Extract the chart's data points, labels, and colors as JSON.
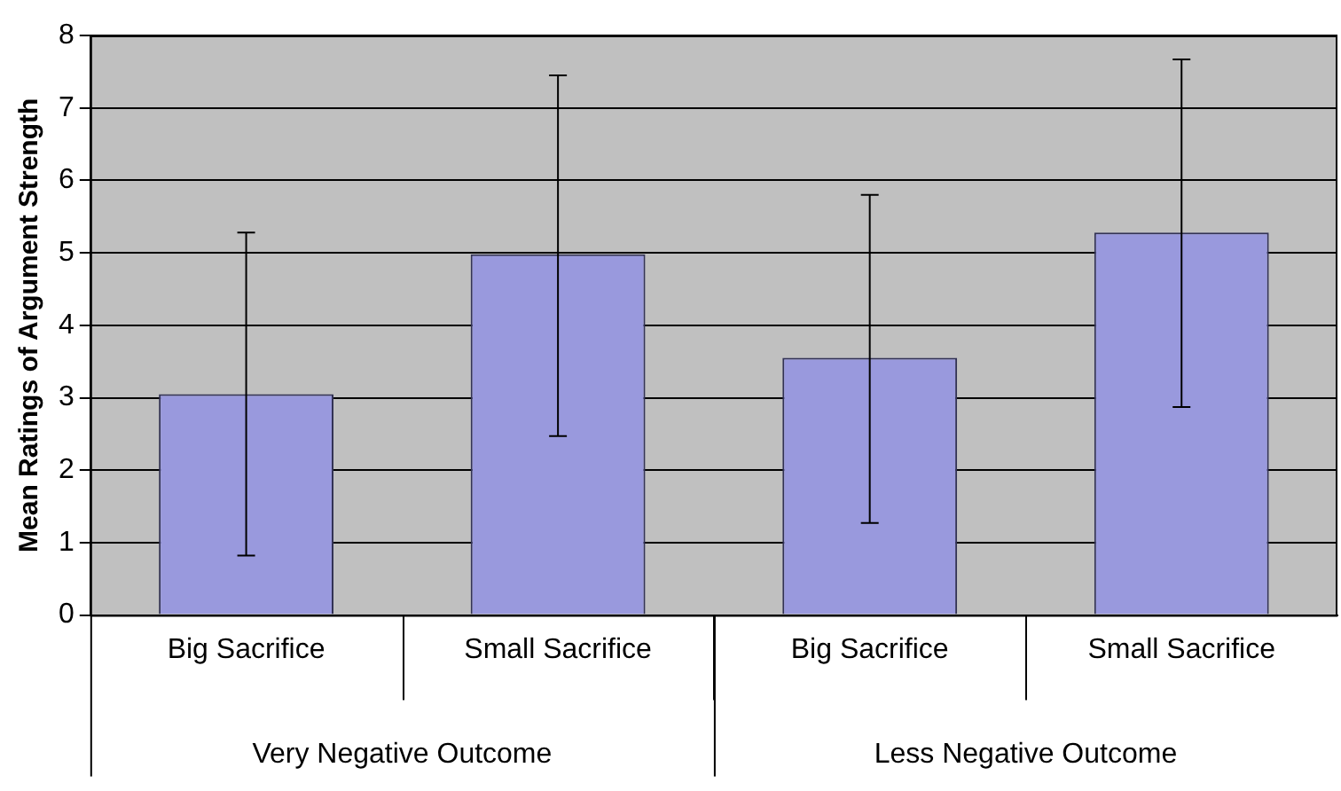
{
  "chart_data": {
    "type": "bar",
    "ylabel": "Mean Ratings of Argument Strength",
    "categories": [
      "Big Sacrifice",
      "Small Sacrifice",
      "Big Sacrifice",
      "Small Sacrifice"
    ],
    "values": [
      3.05,
      4.98,
      3.55,
      5.28
    ],
    "color": "#9999dd",
    "errors": [
      [
        0.82,
        5.28
      ],
      [
        2.47,
        7.45
      ],
      [
        1.27,
        5.8
      ],
      [
        2.87,
        7.67
      ]
    ],
    "ylim": [
      0,
      8
    ],
    "yticks": [
      0,
      1,
      2,
      3,
      4,
      5,
      6,
      7,
      8
    ],
    "grid": "y",
    "legend": false,
    "annotations": [
      "Very Negative Outcome",
      "Less Negative Outcome"
    ]
  }
}
